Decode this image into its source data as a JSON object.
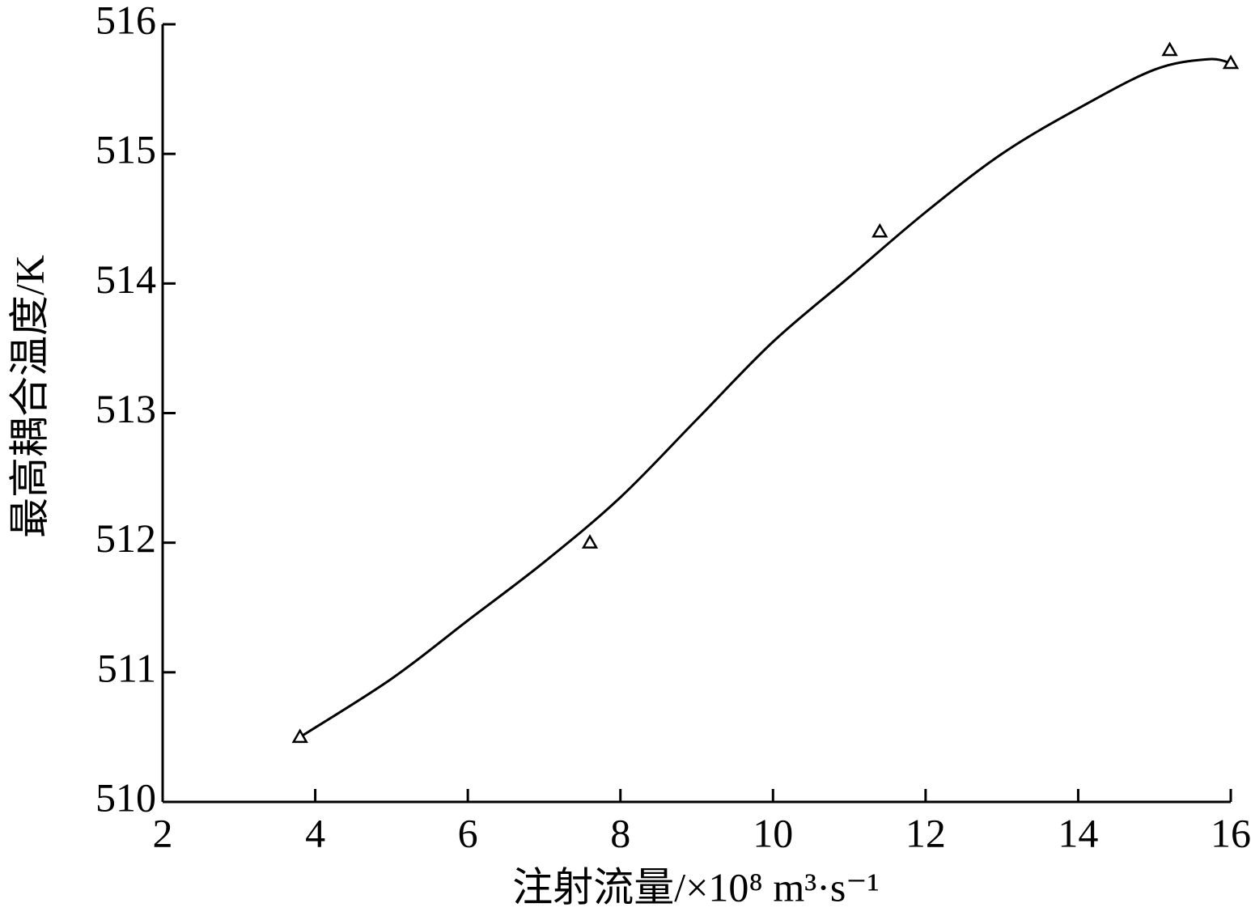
{
  "chart_data": {
    "type": "scatter",
    "xlabel": "注射流量/×10⁸ m³·s⁻¹",
    "ylabel": "最高耦合温度/K",
    "series": [
      {
        "type": "scatter",
        "marker": "triangle",
        "color": "#000000",
        "x": [
          3.8,
          7.6,
          11.4,
          15.2,
          16.0
        ],
        "values": [
          510.5,
          512.0,
          514.4,
          515.8,
          515.7
        ]
      },
      {
        "type": "line",
        "color": "#000000",
        "x": [
          3.8,
          5,
          6,
          7,
          8,
          9,
          10,
          11,
          12,
          13,
          14,
          15,
          15.7,
          16
        ],
        "values": [
          510.5,
          510.95,
          511.4,
          511.85,
          512.35,
          512.95,
          513.55,
          514.05,
          514.55,
          515.0,
          515.35,
          515.65,
          515.73,
          515.7
        ]
      }
    ],
    "xlim": [
      2,
      16
    ],
    "xticks": [
      2,
      4,
      6,
      8,
      10,
      12,
      14,
      16
    ],
    "ylim": [
      510,
      516
    ],
    "yticks": [
      510,
      511,
      512,
      513,
      514,
      515,
      516
    ],
    "grid": false
  }
}
